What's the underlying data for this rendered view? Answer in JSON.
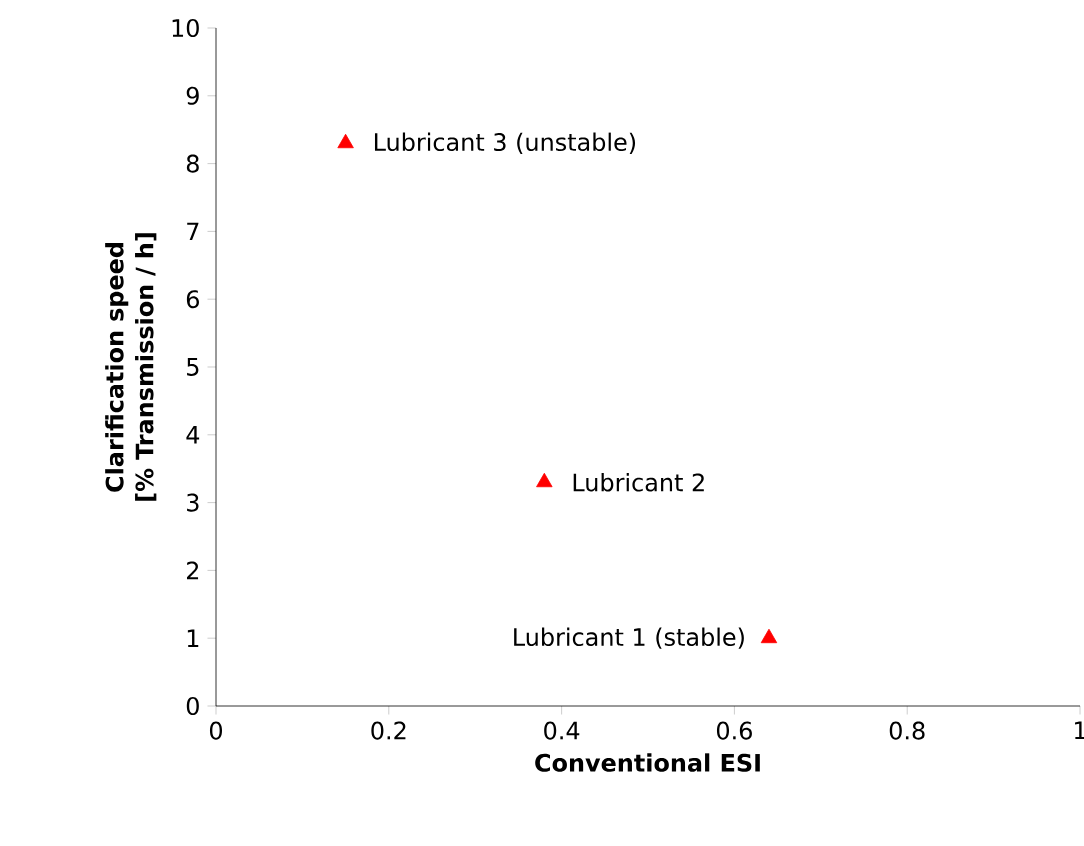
{
  "chart_data": {
    "type": "scatter",
    "xlabel": "Conventional ESI",
    "ylabel": "Clarification speed [% Transmission / h]",
    "x": [
      0.15,
      0.38,
      0.64
    ],
    "values": [
      8.3,
      3.3,
      1.0
    ],
    "color": "#ff0000",
    "marker": "triangle",
    "xlim": [
      0,
      1
    ],
    "xticks": [
      0,
      0.2,
      0.4,
      0.6,
      0.8,
      1
    ],
    "ylim": [
      0,
      10
    ],
    "yticks": [
      0,
      1,
      2,
      3,
      4,
      5,
      6,
      7,
      8,
      9,
      10
    ],
    "grid": false,
    "annotations": [
      {
        "text": "Lubricant 3 (unstable)",
        "x": 0.15,
        "y": 8.3
      },
      {
        "text": "Lubricant 2",
        "x": 0.38,
        "y": 3.3
      },
      {
        "text": "Lubricant 1 (stable)",
        "x": 0.64,
        "y": 1.0
      }
    ]
  }
}
